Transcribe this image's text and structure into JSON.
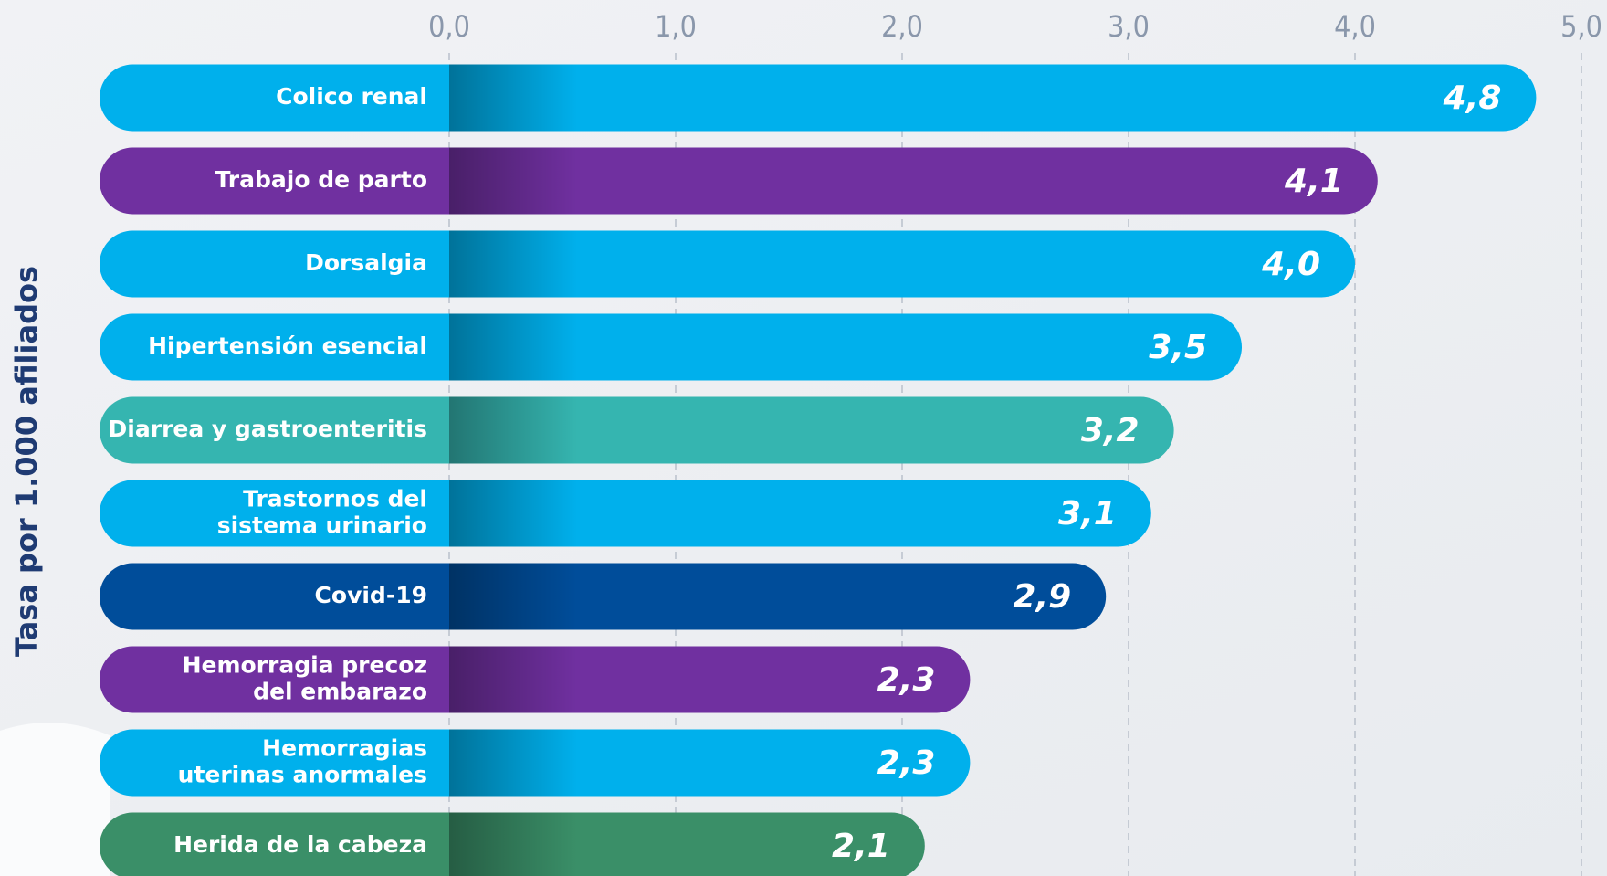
{
  "chart_data": {
    "type": "bar",
    "orientation": "horizontal",
    "ylabel": "Tasa por 1.000 afiliados",
    "categories": [
      [
        "Colico renal"
      ],
      [
        "Trabajo de parto"
      ],
      [
        "Dorsalgia"
      ],
      [
        "Hipertensión esencial"
      ],
      [
        "Diarrea y gastroenteritis"
      ],
      [
        "Trastornos del",
        "sistema urinario"
      ],
      [
        "Covid-19"
      ],
      [
        "Hemorragia precoz",
        "del embarazo"
      ],
      [
        "Hemorragias",
        "uterinas anormales"
      ],
      [
        "Herida de la cabeza"
      ]
    ],
    "values": [
      4.8,
      4.1,
      4.0,
      3.5,
      3.2,
      3.1,
      2.9,
      2.3,
      2.3,
      2.1
    ],
    "value_labels": [
      "4,8",
      "4,1",
      "4,0",
      "3,5",
      "3,2",
      "3,1",
      "2,9",
      "2,3",
      "2,3",
      "2,1"
    ],
    "colors": [
      "#00b0ec",
      "#7030a0",
      "#00b0ec",
      "#00b0ec",
      "#35b5b0",
      "#00b0ec",
      "#004d9a",
      "#7030a0",
      "#00b0ec",
      "#3a8f68"
    ],
    "xlim": [
      0,
      5
    ],
    "xticks": [
      {
        "value": 0,
        "label": "0,0"
      },
      {
        "value": 1,
        "label": "1,0"
      },
      {
        "value": 2,
        "label": "2,0"
      },
      {
        "value": 3,
        "label": "3,0"
      },
      {
        "value": 4,
        "label": "4,0"
      },
      {
        "value": 5,
        "label": "5,0"
      }
    ],
    "grid": true
  }
}
